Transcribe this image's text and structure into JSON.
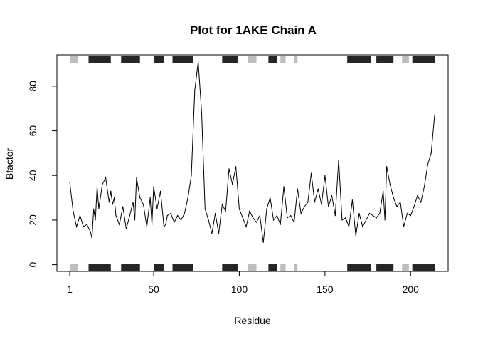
{
  "chart_data": {
    "type": "line",
    "title": "Plot for 1AKE Chain A",
    "xlabel": "Residue",
    "ylabel": "Bfactor",
    "xlim": [
      1,
      214
    ],
    "ylim": [
      -3,
      94
    ],
    "xticks": [
      1,
      50,
      100,
      150,
      200
    ],
    "yticks": [
      0,
      20,
      40,
      60,
      80
    ],
    "grid": false,
    "series": [
      {
        "x": [
          1,
          3,
          5,
          7,
          9,
          11,
          13,
          14,
          15,
          16,
          17,
          18,
          20,
          22,
          24,
          25,
          26,
          27,
          28,
          30,
          32,
          34,
          36,
          38,
          39,
          40,
          42,
          44,
          46,
          48,
          49,
          50,
          52,
          54,
          56,
          57,
          58,
          60,
          62,
          64,
          66,
          68,
          70,
          72,
          74,
          76,
          78,
          80,
          82,
          84,
          86,
          88,
          90,
          92,
          94,
          96,
          98,
          100,
          102,
          104,
          106,
          108,
          110,
          112,
          114,
          116,
          118,
          120,
          122,
          124,
          126,
          128,
          130,
          132,
          134,
          136,
          138,
          140,
          142,
          144,
          146,
          148,
          150,
          152,
          154,
          156,
          158,
          160,
          162,
          164,
          166,
          168,
          170,
          172,
          174,
          176,
          178,
          180,
          182,
          184,
          185,
          186,
          188,
          190,
          192,
          194,
          196,
          198,
          200,
          202,
          204,
          206,
          208,
          210,
          212,
          214
        ],
        "values": [
          37,
          24,
          17,
          22,
          17,
          18,
          15,
          12,
          25,
          20,
          35,
          25,
          36,
          39,
          28,
          33,
          27,
          30,
          22,
          18,
          26,
          16,
          22,
          28,
          20,
          39,
          30,
          27,
          17,
          30,
          18,
          35,
          25,
          33,
          17,
          18,
          22,
          23,
          19,
          22,
          20,
          23,
          30,
          40,
          78,
          91,
          68,
          25,
          20,
          14,
          23,
          14,
          27,
          24,
          43,
          36,
          44,
          25,
          21,
          17,
          24,
          21,
          19,
          22,
          10,
          25,
          30,
          20,
          22,
          18,
          35,
          21,
          22,
          19,
          34,
          23,
          26,
          28,
          41,
          28,
          34,
          27,
          40,
          26,
          31,
          22,
          47,
          20,
          21,
          17,
          29,
          13,
          23,
          17,
          20,
          23,
          22,
          21,
          23,
          33,
          20,
          44,
          36,
          30,
          26,
          28,
          17,
          23,
          22,
          26,
          31,
          28,
          35,
          45,
          50,
          67
        ],
        "color": "#000000"
      }
    ],
    "secondary_structure": {
      "helix_color": "#262626",
      "strand_color": "#bebebe",
      "helix": [
        [
          12,
          25
        ],
        [
          31,
          42
        ],
        [
          50,
          56
        ],
        [
          61,
          73
        ],
        [
          90,
          99
        ],
        [
          117,
          122
        ],
        [
          163,
          177
        ],
        [
          180,
          190
        ],
        [
          201,
          214
        ]
      ],
      "strand": [
        [
          1,
          6
        ],
        [
          105,
          110
        ],
        [
          124,
          127
        ],
        [
          132,
          134
        ],
        [
          195,
          199
        ]
      ]
    }
  }
}
